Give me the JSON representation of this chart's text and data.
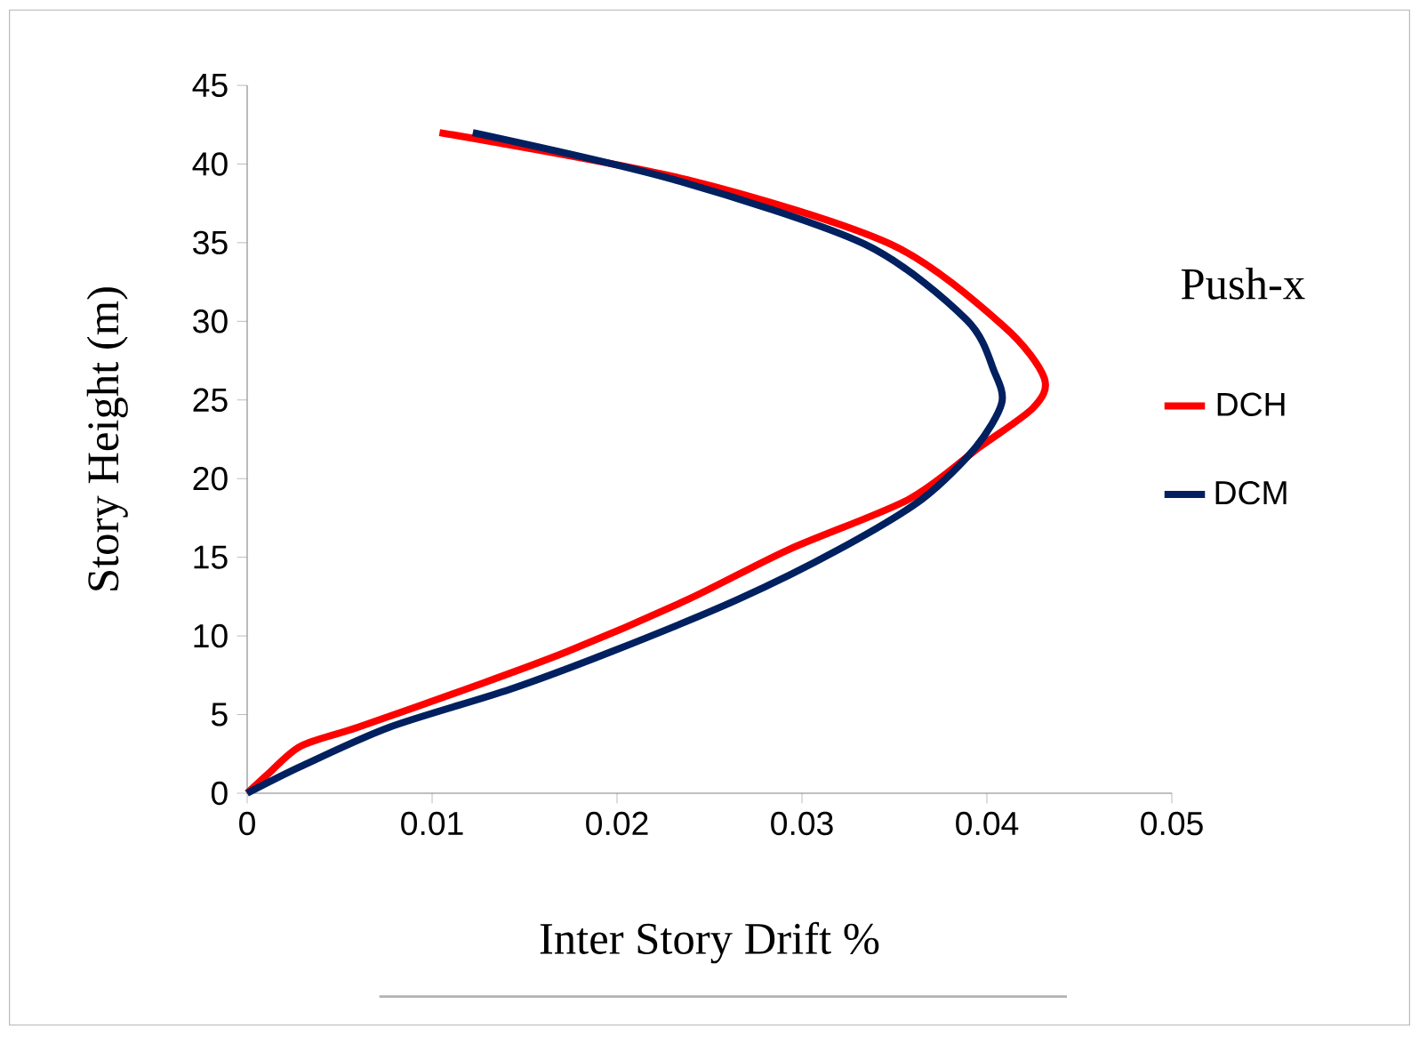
{
  "chart_data": {
    "type": "line",
    "xlabel": "Inter Story Drift %",
    "ylabel": "Story Height (m)",
    "annotations": [
      "Push-x"
    ],
    "xlim": [
      0,
      0.05
    ],
    "ylim": [
      0,
      45
    ],
    "xticks": [
      0,
      0.01,
      0.02,
      0.03,
      0.04,
      0.05
    ],
    "yticks": [
      0,
      5,
      10,
      15,
      20,
      25,
      30,
      35,
      40,
      45
    ],
    "legend": "right",
    "marker": "none",
    "line_style": "solid",
    "grid": false,
    "series": [
      {
        "name": "DCH",
        "color": "#ff0000",
        "x": [
          0,
          0.0012,
          0.0029,
          0.006,
          0.0118,
          0.0173,
          0.0238,
          0.0293,
          0.0358,
          0.0396,
          0.0425,
          0.0431,
          0.0409,
          0.0348,
          0.0238,
          0.0104
        ],
        "values": [
          0,
          1.3,
          3,
          4.2,
          6.6,
          9,
          12.3,
          15.5,
          18.7,
          22,
          24.5,
          26.4,
          29.7,
          34.9,
          39,
          42
        ]
      },
      {
        "name": "DCM",
        "color": "#002060",
        "x": [
          0,
          0.0029,
          0.0077,
          0.0142,
          0.0197,
          0.0265,
          0.032,
          0.0365,
          0.0394,
          0.0408,
          0.0404,
          0.0389,
          0.0334,
          0.0231,
          0.0122
        ],
        "values": [
          0,
          1.7,
          4.2,
          6.6,
          9,
          12.3,
          15.5,
          18.7,
          22,
          24.8,
          26.8,
          30.1,
          34.9,
          39,
          42
        ]
      }
    ]
  }
}
